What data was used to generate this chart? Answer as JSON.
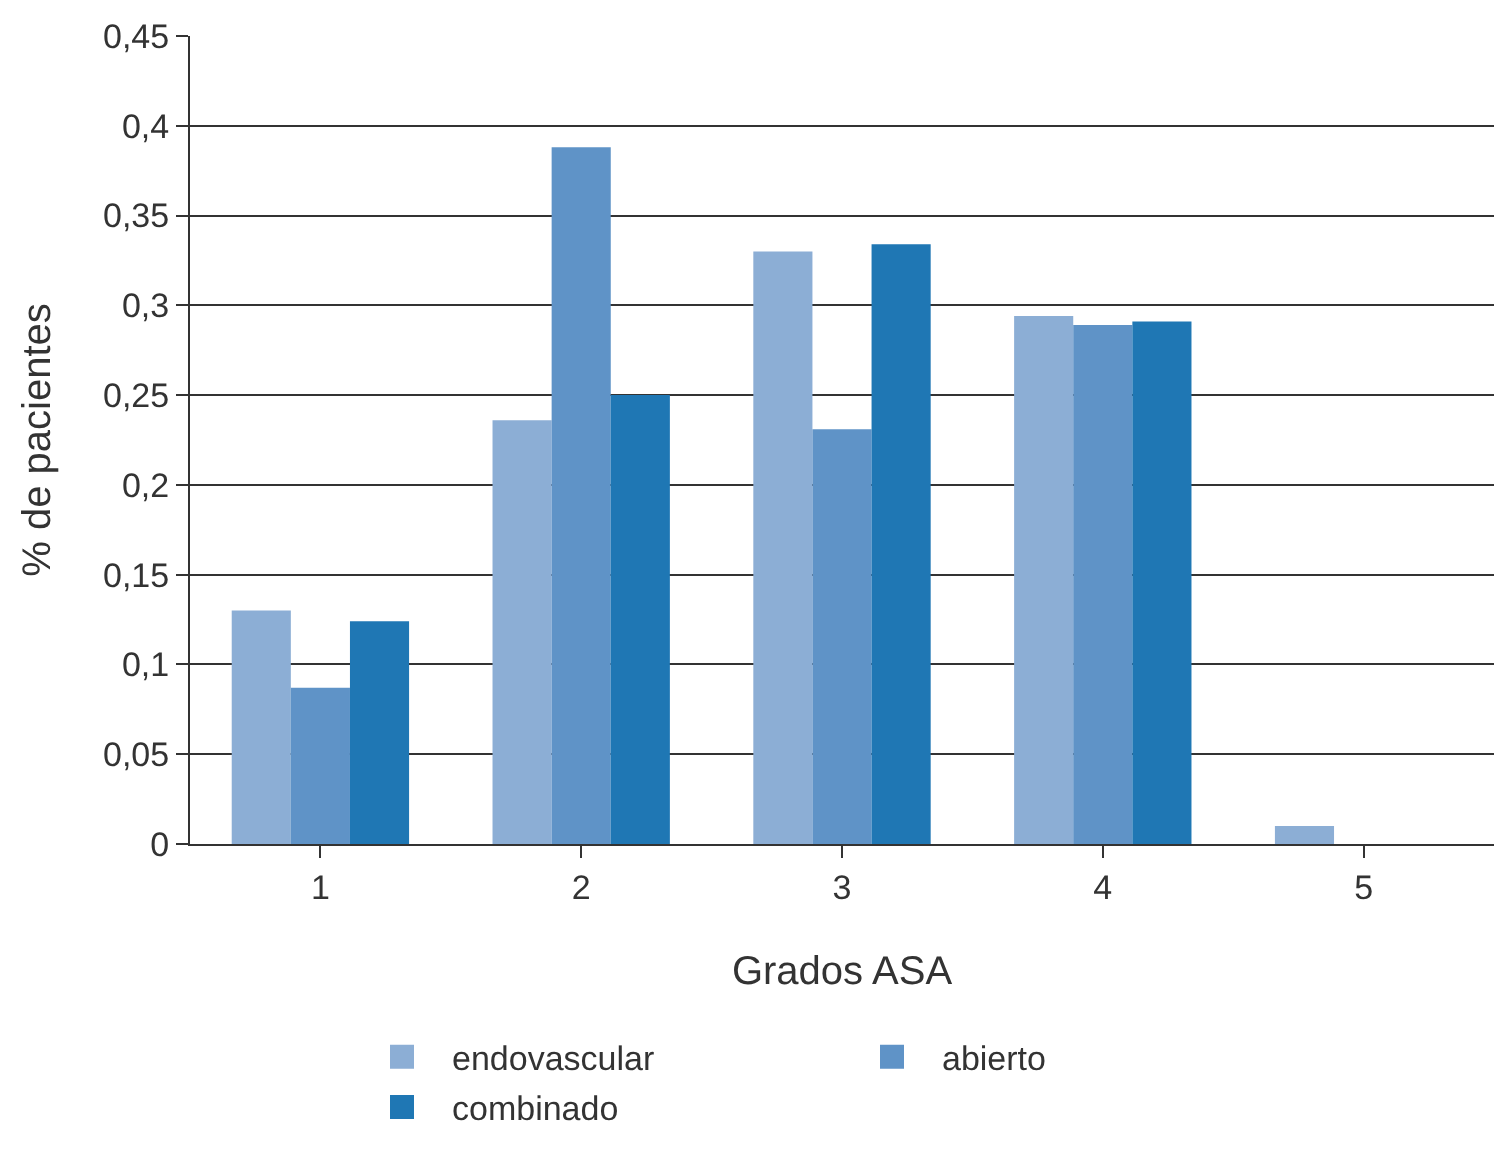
{
  "chart_data": {
    "type": "bar",
    "xlabel": "Grados ASA",
    "ylabel": "% de pacientes",
    "categories": [
      "1",
      "2",
      "3",
      "4",
      "5"
    ],
    "series": [
      {
        "name": "endovascular",
        "color": "#8caed5",
        "values": [
          0.13,
          0.236,
          0.33,
          0.294,
          0.01
        ]
      },
      {
        "name": "abierto",
        "color": "#5f93c7",
        "values": [
          0.087,
          0.388,
          0.231,
          0.289,
          0
        ]
      },
      {
        "name": "combinado",
        "color": "#1f77b4",
        "values": [
          0.124,
          0.25,
          0.334,
          0.291,
          0
        ]
      }
    ],
    "ylim": [
      0,
      0.45
    ],
    "yticks": [
      {
        "value": 0,
        "label": "0"
      },
      {
        "value": 0.05,
        "label": "0,05"
      },
      {
        "value": 0.1,
        "label": "0,1"
      },
      {
        "value": 0.15,
        "label": "0,15"
      },
      {
        "value": 0.2,
        "label": "0,2"
      },
      {
        "value": 0.25,
        "label": "0,25"
      },
      {
        "value": 0.3,
        "label": "0,3"
      },
      {
        "value": 0.35,
        "label": "0,35"
      },
      {
        "value": 0.4,
        "label": "0,4"
      },
      {
        "value": 0.45,
        "label": "0,45"
      }
    ],
    "grid": "y",
    "legend": "bottom"
  }
}
